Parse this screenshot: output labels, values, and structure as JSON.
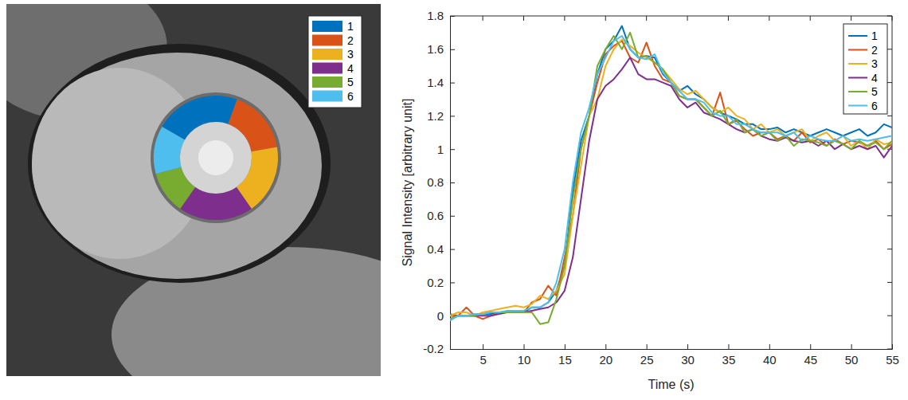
{
  "chart_data": {
    "type": "line",
    "xlabel": "Time (s)",
    "ylabel": "Signal Intensity [arbitrary unit]",
    "xlim": [
      1,
      55
    ],
    "xticks": [
      5,
      10,
      15,
      20,
      25,
      30,
      35,
      40,
      45,
      50,
      55
    ],
    "ylim": [
      -0.2,
      1.8
    ],
    "yticks": [
      -0.2,
      0,
      0.2,
      0.4,
      0.6,
      0.8,
      1,
      1.2,
      1.4,
      1.6,
      1.8
    ],
    "grid": false,
    "legend": "top-right",
    "x": [
      1,
      2,
      3,
      4,
      5,
      6,
      7,
      8,
      9,
      10,
      11,
      12,
      13,
      14,
      15,
      16,
      17,
      18,
      19,
      20,
      21,
      22,
      23,
      24,
      25,
      26,
      27,
      28,
      29,
      30,
      31,
      32,
      33,
      34,
      35,
      36,
      37,
      38,
      39,
      40,
      41,
      42,
      43,
      44,
      45,
      46,
      47,
      48,
      49,
      50,
      51,
      52,
      53,
      54,
      55
    ],
    "series": [
      {
        "name": "1",
        "color": "#0072bd",
        "values": [
          0.01,
          0.0,
          0.0,
          0.0,
          0.01,
          0.01,
          0.02,
          0.02,
          0.02,
          0.02,
          0.05,
          0.05,
          0.08,
          0.15,
          0.3,
          0.75,
          1.05,
          1.2,
          1.45,
          1.6,
          1.65,
          1.74,
          1.6,
          1.55,
          1.56,
          1.55,
          1.45,
          1.4,
          1.35,
          1.38,
          1.33,
          1.3,
          1.25,
          1.22,
          1.2,
          1.18,
          1.15,
          1.15,
          1.12,
          1.12,
          1.13,
          1.1,
          1.12,
          1.1,
          1.08,
          1.1,
          1.12,
          1.1,
          1.08,
          1.1,
          1.12,
          1.08,
          1.1,
          1.15,
          1.13
        ]
      },
      {
        "name": "2",
        "color": "#d95319",
        "values": [
          0.0,
          0.0,
          0.05,
          0.0,
          -0.02,
          0.0,
          0.02,
          0.02,
          0.03,
          0.02,
          0.08,
          0.1,
          0.18,
          0.12,
          0.35,
          0.6,
          1.0,
          1.2,
          1.4,
          1.57,
          1.62,
          1.65,
          1.55,
          1.52,
          1.64,
          1.5,
          1.42,
          1.4,
          1.32,
          1.3,
          1.3,
          1.25,
          1.2,
          1.34,
          1.15,
          1.17,
          1.12,
          1.08,
          1.1,
          1.1,
          1.06,
          1.08,
          1.05,
          1.1,
          1.04,
          1.06,
          1.02,
          1.06,
          1.03,
          1.05,
          1.04,
          1.02,
          1.05,
          1.0,
          1.03
        ]
      },
      {
        "name": "3",
        "color": "#edb120",
        "values": [
          0.0,
          0.02,
          0.02,
          0.0,
          0.02,
          0.03,
          0.04,
          0.05,
          0.06,
          0.05,
          0.07,
          0.12,
          0.1,
          0.15,
          0.25,
          0.6,
          0.9,
          1.2,
          1.3,
          1.5,
          1.6,
          1.66,
          1.62,
          1.58,
          1.55,
          1.52,
          1.48,
          1.42,
          1.36,
          1.33,
          1.35,
          1.3,
          1.25,
          1.22,
          1.25,
          1.2,
          1.18,
          1.12,
          1.15,
          1.1,
          1.12,
          1.08,
          1.1,
          1.12,
          1.05,
          1.08,
          1.1,
          1.05,
          1.08,
          1.02,
          1.05,
          1.0,
          1.06,
          1.03,
          1.04
        ]
      },
      {
        "name": "4",
        "color": "#7e2f8e",
        "values": [
          -0.02,
          0.0,
          0.0,
          0.0,
          0.0,
          0.0,
          0.01,
          0.02,
          0.02,
          0.02,
          0.03,
          0.04,
          0.05,
          0.08,
          0.15,
          0.35,
          0.7,
          1.05,
          1.3,
          1.38,
          1.42,
          1.48,
          1.55,
          1.45,
          1.42,
          1.42,
          1.4,
          1.38,
          1.3,
          1.25,
          1.28,
          1.22,
          1.2,
          1.18,
          1.15,
          1.12,
          1.1,
          1.12,
          1.08,
          1.06,
          1.05,
          1.07,
          1.05,
          1.04,
          1.05,
          1.02,
          1.05,
          1.0,
          1.03,
          1.0,
          1.02,
          1.0,
          1.02,
          0.95,
          1.02
        ]
      },
      {
        "name": "5",
        "color": "#77ac30",
        "values": [
          -0.02,
          0.0,
          0.0,
          0.0,
          0.01,
          0.02,
          0.02,
          0.02,
          0.02,
          0.02,
          0.02,
          -0.05,
          -0.04,
          0.1,
          0.3,
          0.7,
          1.0,
          1.2,
          1.5,
          1.6,
          1.68,
          1.6,
          1.7,
          1.55,
          1.56,
          1.52,
          1.48,
          1.4,
          1.32,
          1.3,
          1.3,
          1.25,
          1.2,
          1.23,
          1.15,
          1.18,
          1.1,
          1.12,
          1.08,
          1.1,
          1.05,
          1.08,
          1.02,
          1.06,
          1.05,
          1.04,
          1.02,
          1.05,
          1.03,
          1.0,
          1.05,
          1.02,
          1.04,
          1.0,
          1.05
        ]
      },
      {
        "name": "6",
        "color": "#4dbeee",
        "values": [
          -0.03,
          0.0,
          0.0,
          0.01,
          0.01,
          0.02,
          0.02,
          0.03,
          0.03,
          0.03,
          0.05,
          0.05,
          0.08,
          0.2,
          0.4,
          0.8,
          1.1,
          1.25,
          1.45,
          1.55,
          1.65,
          1.68,
          1.6,
          1.55,
          1.54,
          1.57,
          1.46,
          1.4,
          1.35,
          1.3,
          1.3,
          1.28,
          1.22,
          1.2,
          1.2,
          1.15,
          1.15,
          1.12,
          1.1,
          1.1,
          1.1,
          1.08,
          1.1,
          1.05,
          1.08,
          1.06,
          1.05,
          1.05,
          1.08,
          1.05,
          1.06,
          1.05,
          1.06,
          1.07,
          1.08
        ]
      }
    ]
  }
}
